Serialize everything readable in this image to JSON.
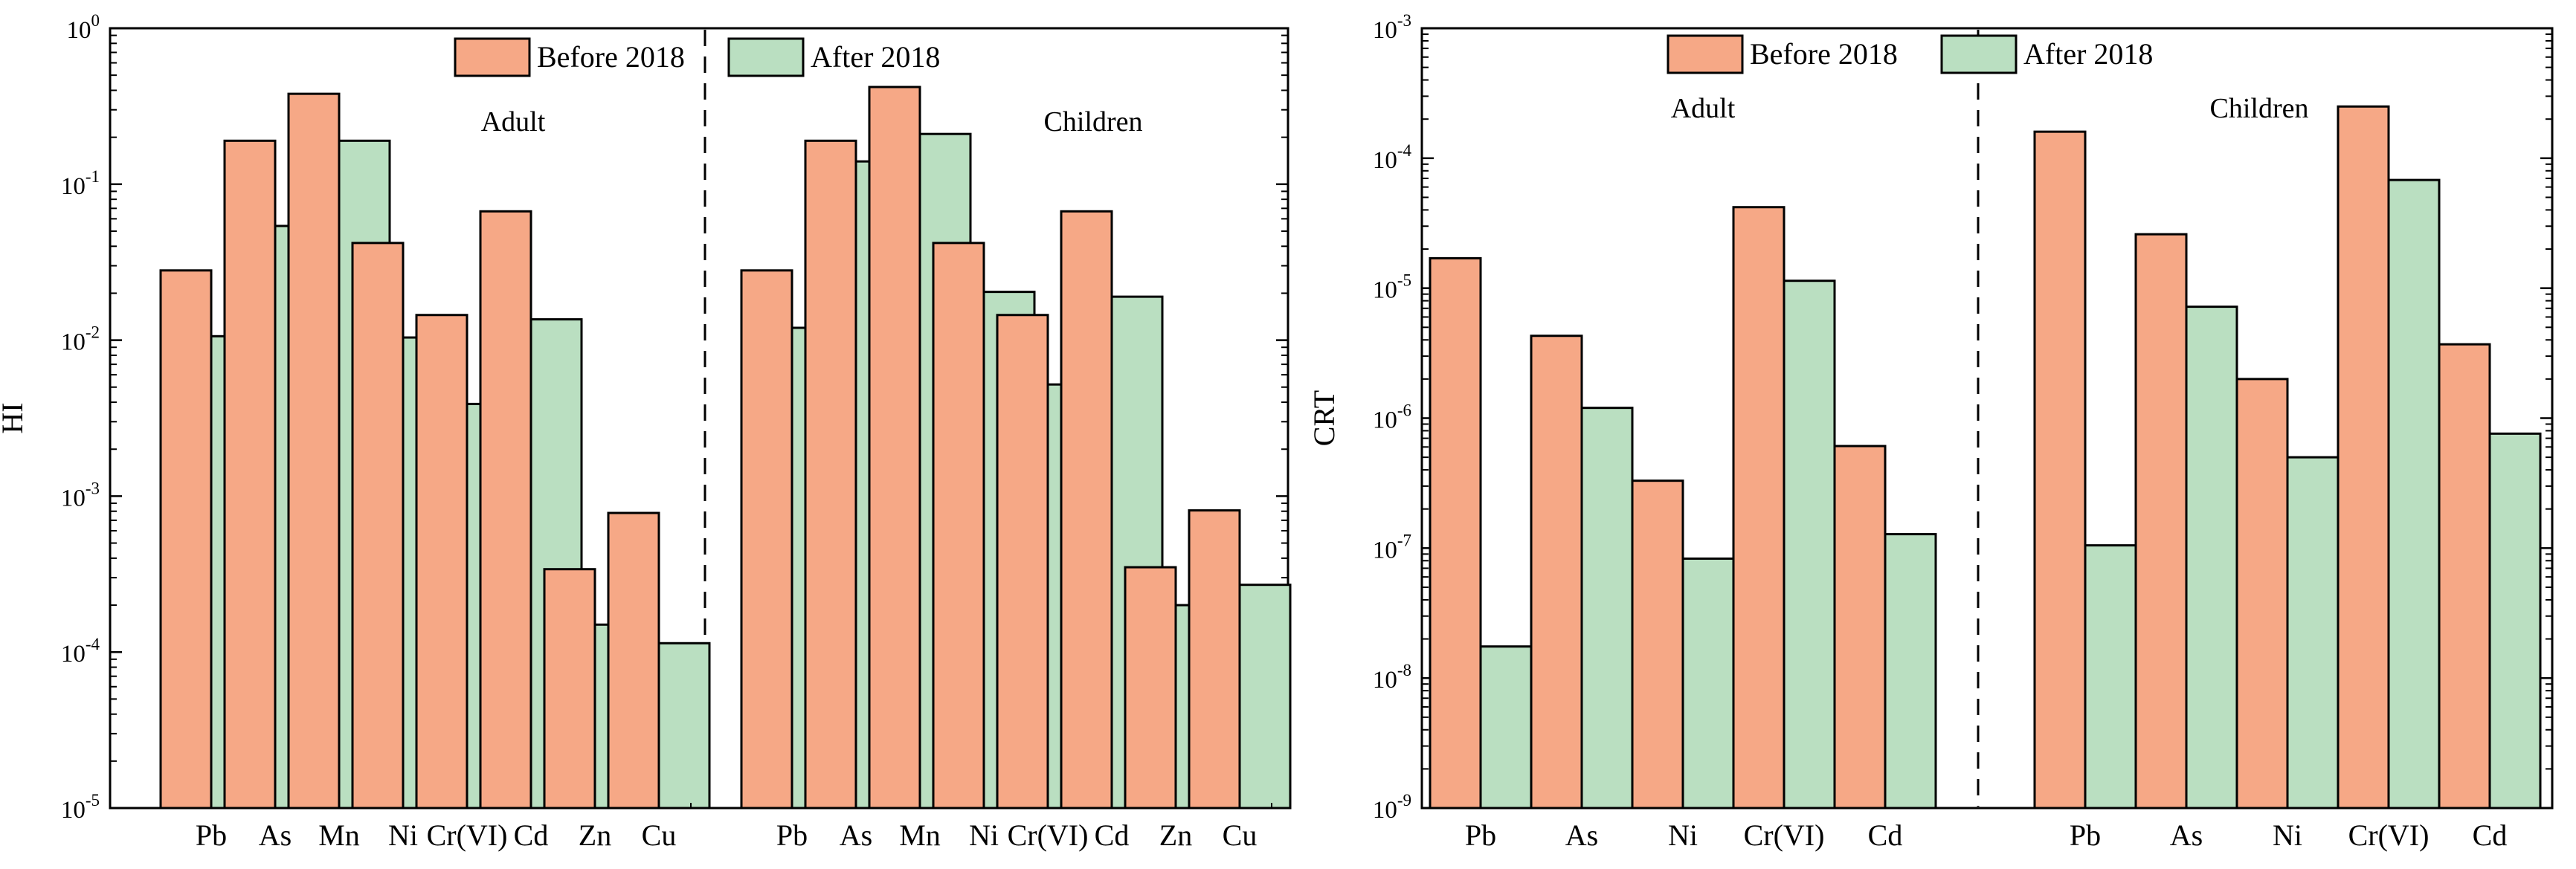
{
  "legend": {
    "before_label": "Before 2018",
    "after_label": "After 2018"
  },
  "colors": {
    "before": "#F6A886",
    "after": "#BADFC1",
    "axis": "#000000"
  },
  "chart_data": [
    {
      "type": "bar",
      "title": "",
      "ylabel": "HI",
      "yscale": "log",
      "ylim": [
        1e-05,
        1
      ],
      "ytick_bases": [
        "10",
        "10",
        "10",
        "10",
        "10",
        "10"
      ],
      "ytick_exponents": [
        "-5",
        "-4",
        "-3",
        "-2",
        "-1",
        "0"
      ],
      "groups": [
        {
          "label": "Adult",
          "categories": [
            "Pb",
            "As",
            "Mn",
            "Ni",
            "Cr(VI)",
            "Cd",
            "Zn",
            "Cu"
          ],
          "series": [
            {
              "name": "Before 2018",
              "values": [
                0.028,
                0.19,
                0.38,
                0.042,
                0.0145,
                0.067,
                0.00034,
                0.00078
              ]
            },
            {
              "name": "After 2018",
              "values": [
                0.0106,
                0.054,
                0.19,
                0.0104,
                0.0039,
                0.0136,
                0.00015,
                0.000114
              ]
            }
          ]
        },
        {
          "label": "Children",
          "categories": [
            "Pb",
            "As",
            "Mn",
            "Ni",
            "Cr(VI)",
            "Cd",
            "Zn",
            "Cu"
          ],
          "series": [
            {
              "name": "Before 2018",
              "values": [
                0.028,
                0.19,
                0.42,
                0.042,
                0.0145,
                0.067,
                0.00035,
                0.00081
              ]
            },
            {
              "name": "After 2018",
              "values": [
                0.012,
                0.14,
                0.21,
                0.0204,
                0.0052,
                0.019,
                0.0002,
                0.00027
              ]
            }
          ]
        }
      ]
    },
    {
      "type": "bar",
      "title": "",
      "ylabel": "CRT",
      "yscale": "log",
      "ylim": [
        1e-09,
        0.001
      ],
      "ytick_bases": [
        "10",
        "10",
        "10",
        "10",
        "10",
        "10",
        "10"
      ],
      "ytick_exponents": [
        "-9",
        "-8",
        "-7",
        "-6",
        "-5",
        "-4",
        "-3"
      ],
      "groups": [
        {
          "label": "Adult",
          "categories": [
            "Pb",
            "As",
            "Ni",
            "Cr(VI)",
            "Cd"
          ],
          "series": [
            {
              "name": "Before 2018",
              "values": [
                1.7e-05,
                4.3e-06,
                3.3e-07,
                4.2e-05,
                6.1e-07
              ]
            },
            {
              "name": "After 2018",
              "values": [
                1.75e-08,
                1.2e-06,
                8.3e-08,
                1.14e-05,
                1.28e-07
              ]
            }
          ]
        },
        {
          "label": "Children",
          "categories": [
            "Pb",
            "As",
            "Ni",
            "Cr(VI)",
            "Cd"
          ],
          "series": [
            {
              "name": "Before 2018",
              "values": [
                0.00016,
                2.6e-05,
                2e-06,
                0.00025,
                3.7e-06
              ]
            },
            {
              "name": "After 2018",
              "values": [
                1.05e-07,
                7.2e-06,
                5e-07,
                6.8e-05,
                7.6e-07
              ]
            }
          ]
        }
      ]
    }
  ]
}
